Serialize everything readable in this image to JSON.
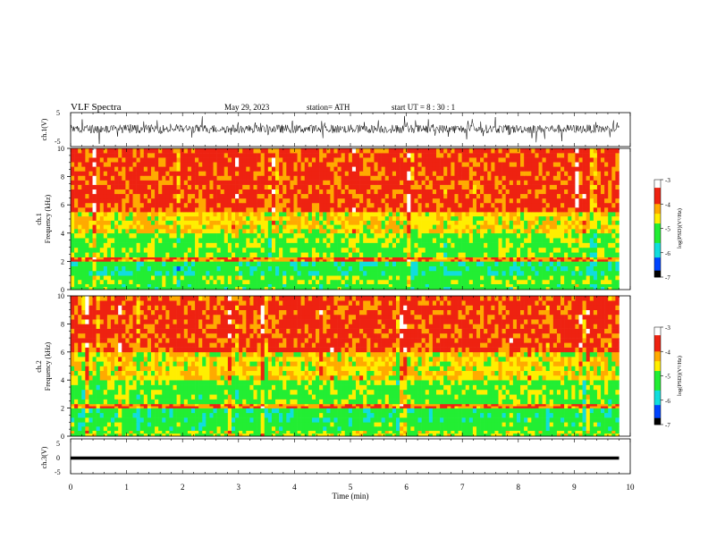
{
  "header": {
    "title": "VLF  Spectra",
    "date": "May 29, 2023",
    "station": "station= ATH",
    "start": "start  UT  =   8  : 30 : 1"
  },
  "colors": {
    "white": "#ffffff",
    "red": "#ee2211",
    "orange": "#ffaa00",
    "yellow": "#ffee00",
    "green": "#22ee33",
    "cyan": "#11dddd",
    "blue": "#0044ff",
    "black": "#000000"
  },
  "chart_data": [
    {
      "type": "line",
      "id": "ch1-waveform",
      "ylabel": "ch.1(V)",
      "ylim": [
        -5,
        5
      ],
      "ytick_labels": [
        "5",
        "-5"
      ],
      "x_range_min": [
        0,
        9.8
      ],
      "description_values": {
        "baseline_v": 0.2,
        "amplitude_v": 2.5
      }
    },
    {
      "type": "heatmap",
      "id": "ch1-spectrogram",
      "ylabel_top": "ch.1",
      "ylabel": "Frequency  (kHz)",
      "ylim_khz": [
        0,
        10
      ],
      "ytick_labels": [
        "0",
        "2",
        "4",
        "6",
        "8",
        "10"
      ],
      "colorbar": {
        "label": "log(PSD)(V²/Hz)",
        "range": [
          -7,
          -3
        ],
        "tick_labels": [
          "-3",
          "-4",
          "-5",
          "-6",
          "-7"
        ]
      },
      "band_profile_khz": [
        {
          "from": 0.0,
          "to": 0.4,
          "level": -5.2
        },
        {
          "from": 0.4,
          "to": 1.0,
          "level": -5.0
        },
        {
          "from": 1.0,
          "to": 2.0,
          "level": -5.4
        },
        {
          "from": 2.0,
          "to": 2.3,
          "level": -4.0
        },
        {
          "from": 2.3,
          "to": 4.0,
          "level": -5.0
        },
        {
          "from": 4.0,
          "to": 5.5,
          "level": -4.5
        },
        {
          "from": 5.5,
          "to": 10.0,
          "level": -3.8
        }
      ]
    },
    {
      "type": "heatmap",
      "id": "ch2-spectrogram",
      "ylabel_top": "ch.2",
      "ylabel": "Frequency  (kHz)",
      "ylim_khz": [
        0,
        10
      ],
      "ytick_labels": [
        "0",
        "2",
        "4",
        "6",
        "8",
        "10"
      ],
      "colorbar": {
        "label": "log(PSD)(V²/Hz)",
        "range": [
          -7,
          -3
        ],
        "tick_labels": [
          "-3",
          "-4",
          "-5",
          "-6",
          "-7"
        ]
      },
      "band_profile_khz": [
        {
          "from": 0.0,
          "to": 0.4,
          "level": -4.8
        },
        {
          "from": 0.4,
          "to": 1.0,
          "level": -5.2
        },
        {
          "from": 1.0,
          "to": 2.0,
          "level": -5.3
        },
        {
          "from": 2.0,
          "to": 2.3,
          "level": -4.0
        },
        {
          "from": 2.3,
          "to": 4.0,
          "level": -5.0
        },
        {
          "from": 4.0,
          "to": 6.0,
          "level": -4.5
        },
        {
          "from": 6.0,
          "to": 10.0,
          "level": -3.8
        }
      ]
    },
    {
      "type": "line",
      "id": "ch3-waveform",
      "ylabel": "ch.3(V)",
      "ylim": [
        -5,
        5
      ],
      "ytick_labels": [
        "5",
        "0",
        "-5"
      ],
      "description_values": {
        "baseline_v": -0.5
      }
    }
  ],
  "xaxis": {
    "label": "Time  (min)",
    "range": [
      0,
      10
    ],
    "data_end": 9.8,
    "tick_labels": [
      "0",
      "1",
      "2",
      "3",
      "4",
      "5",
      "6",
      "7",
      "8",
      "9",
      "10"
    ]
  }
}
